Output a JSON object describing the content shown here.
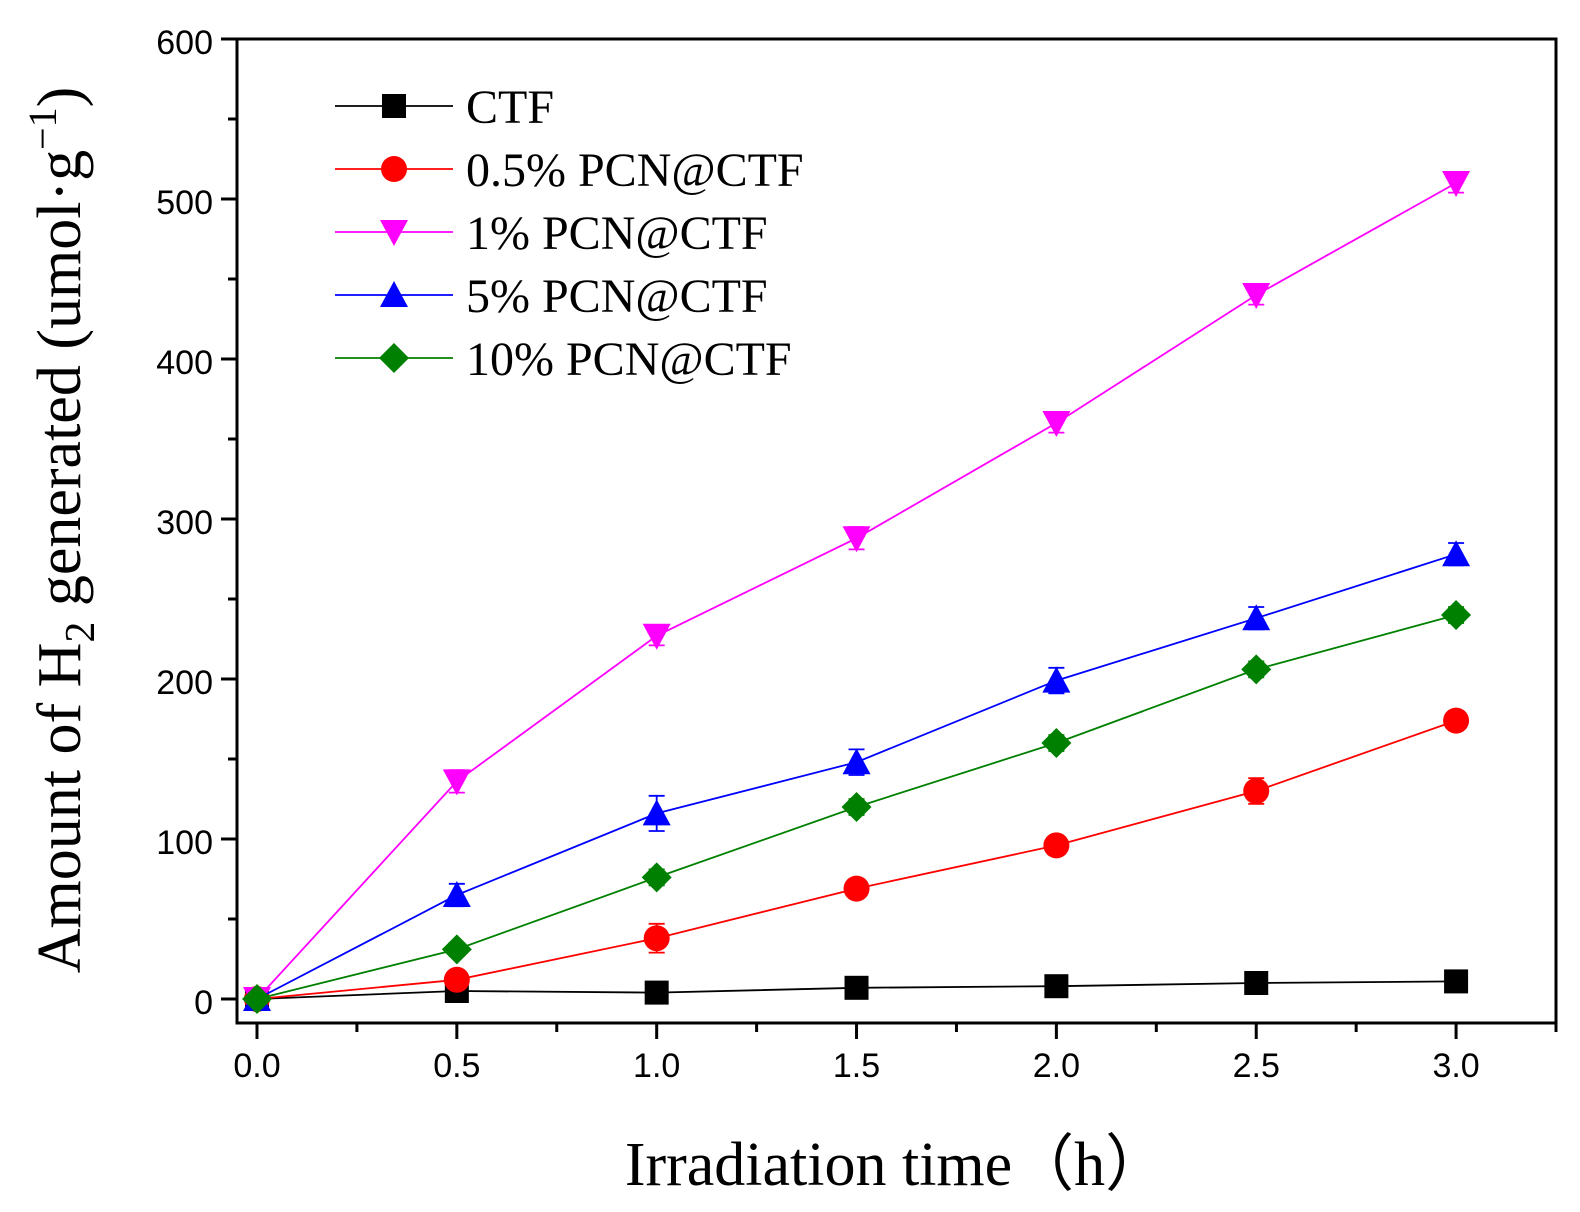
{
  "chart_data": {
    "type": "line",
    "xlabel": "Irradiation time（h）",
    "ylabel": {
      "prefix": "Amount of H",
      "subscript": "2",
      "middle": " generated (umol·g",
      "superscript": "−1",
      "suffix": ")"
    },
    "xlim": [
      -0.05,
      3.25
    ],
    "ylim": [
      -15,
      600
    ],
    "x_ticks": [
      0.0,
      0.5,
      1.0,
      1.5,
      2.0,
      2.5,
      3.0
    ],
    "x_tick_labels": [
      "0.0",
      "0.5",
      "1.0",
      "1.5",
      "2.0",
      "2.5",
      "3.0"
    ],
    "y_ticks": [
      0,
      100,
      200,
      300,
      400,
      500,
      600
    ],
    "y_tick_labels": [
      "0",
      "100",
      "200",
      "300",
      "400",
      "500",
      "600"
    ],
    "x": [
      0.0,
      0.5,
      1.0,
      1.5,
      2.0,
      2.5,
      3.0
    ],
    "legend_position": "top-left",
    "series": [
      {
        "name": "CTF",
        "color": "#000000",
        "marker": "square",
        "values": [
          0,
          5,
          4,
          7,
          8,
          10,
          11
        ],
        "errors": [
          2,
          3,
          3,
          6,
          3,
          3,
          3
        ]
      },
      {
        "name": "0.5% PCN@CTF",
        "color": "#ff0000",
        "marker": "circle",
        "values": [
          0,
          12,
          38,
          69,
          96,
          130,
          174
        ],
        "errors": [
          2,
          4,
          9,
          6,
          4,
          8,
          6
        ]
      },
      {
        "name": "1% PCN@CTF",
        "color": "#ff00ff",
        "marker": "triangle-down",
        "values": [
          0,
          136,
          227,
          288,
          360,
          440,
          510
        ],
        "errors": [
          2,
          7,
          6,
          7,
          6,
          6,
          6
        ]
      },
      {
        "name": "5% PCN@CTF",
        "color": "#0000ff",
        "marker": "triangle-up",
        "values": [
          0,
          65,
          116,
          148,
          199,
          238,
          278
        ],
        "errors": [
          2,
          7,
          11,
          8,
          8,
          7,
          7
        ]
      },
      {
        "name": "10% PCN@CTF",
        "color": "#008000",
        "marker": "diamond",
        "values": [
          0,
          31,
          76,
          120,
          160,
          206,
          240
        ],
        "errors": [
          2,
          4,
          5,
          5,
          5,
          5,
          5
        ]
      }
    ]
  }
}
